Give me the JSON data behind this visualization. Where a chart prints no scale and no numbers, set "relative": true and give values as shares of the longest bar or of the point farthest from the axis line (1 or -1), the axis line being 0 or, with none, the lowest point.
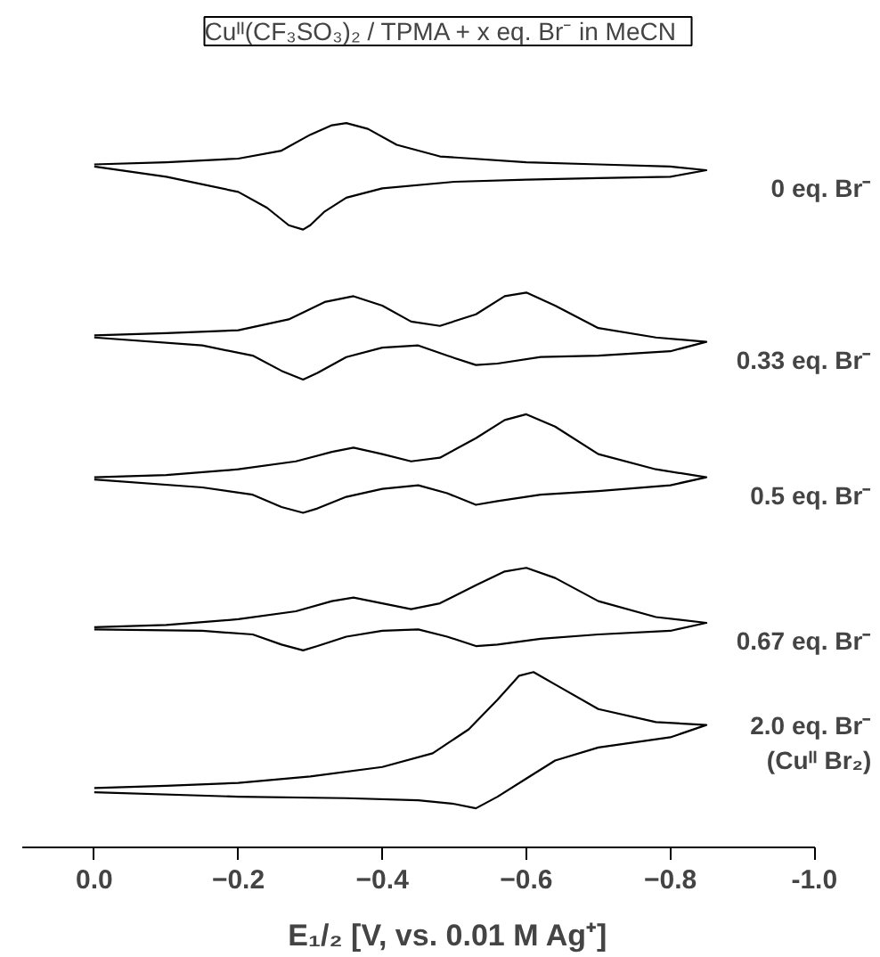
{
  "chart_data": {
    "type": "line",
    "relative": true,
    "title": "Cuᴵᴵ(CF₃SO₃)₂ / TPMA  + x eq. Br⁻  in MeCN",
    "xlabel": "E₁/₂ [V, vs. 0.01 M Ag⁺]",
    "xlim": [
      0.1,
      -1.0
    ],
    "xticks": [
      {
        "value": 0,
        "label": "0.0"
      },
      -0.2,
      -0.4,
      -0.6,
      -0.8,
      {
        "value": -1.0,
        "label": "-1.0"
      }
    ],
    "series": [
      {
        "name": "0 eq. Br⁻",
        "color": "#000000",
        "x": [
          0,
          -0.1,
          -0.2,
          -0.26,
          -0.3,
          -0.33,
          -0.35,
          -0.38,
          -0.42,
          -0.48,
          -0.6,
          -0.7,
          -0.8,
          -0.85,
          -0.8,
          -0.7,
          -0.6,
          -0.5,
          -0.4,
          -0.35,
          -0.32,
          -0.3,
          -0.29,
          -0.27,
          -0.24,
          -0.2,
          -0.1,
          0
        ],
        "values": [
          0.943,
          0.946,
          0.951,
          0.962,
          0.984,
          0.997,
          1.0,
          0.992,
          0.97,
          0.954,
          0.946,
          0.943,
          0.94,
          0.935,
          0.926,
          0.924,
          0.922,
          0.919,
          0.91,
          0.897,
          0.878,
          0.859,
          0.853,
          0.859,
          0.883,
          0.905,
          0.926,
          0.94
        ]
      },
      {
        "name": "0.33 eq. Br⁻",
        "color": "#000000",
        "x": [
          0,
          -0.1,
          -0.2,
          -0.27,
          -0.32,
          -0.36,
          -0.4,
          -0.44,
          -0.48,
          -0.53,
          -0.57,
          -0.6,
          -0.64,
          -0.7,
          -0.78,
          -0.85,
          -0.8,
          -0.7,
          -0.62,
          -0.56,
          -0.53,
          -0.49,
          -0.45,
          -0.4,
          -0.35,
          -0.31,
          -0.29,
          -0.26,
          -0.22,
          -0.15,
          0
        ],
        "values": [
          0.707,
          0.71,
          0.714,
          0.729,
          0.753,
          0.761,
          0.748,
          0.726,
          0.72,
          0.736,
          0.761,
          0.766,
          0.748,
          0.717,
          0.704,
          0.698,
          0.685,
          0.679,
          0.677,
          0.668,
          0.666,
          0.679,
          0.693,
          0.69,
          0.677,
          0.655,
          0.646,
          0.658,
          0.679,
          0.693,
          0.704
        ]
      },
      {
        "name": "0.5 eq. Br⁻",
        "color": "#000000",
        "x": [
          0,
          -0.1,
          -0.2,
          -0.28,
          -0.33,
          -0.36,
          -0.4,
          -0.44,
          -0.48,
          -0.53,
          -0.57,
          -0.6,
          -0.64,
          -0.7,
          -0.78,
          -0.85,
          -0.8,
          -0.7,
          -0.62,
          -0.56,
          -0.53,
          -0.49,
          -0.45,
          -0.4,
          -0.35,
          -0.31,
          -0.29,
          -0.26,
          -0.22,
          -0.15,
          0
        ],
        "values": [
          0.511,
          0.514,
          0.522,
          0.533,
          0.546,
          0.552,
          0.543,
          0.533,
          0.538,
          0.565,
          0.59,
          0.598,
          0.581,
          0.543,
          0.522,
          0.511,
          0.5,
          0.492,
          0.487,
          0.478,
          0.473,
          0.489,
          0.5,
          0.495,
          0.484,
          0.468,
          0.462,
          0.47,
          0.487,
          0.497,
          0.508
        ]
      },
      {
        "name": "0.67 eq. Br⁻",
        "color": "#000000",
        "x": [
          0,
          -0.1,
          -0.2,
          -0.28,
          -0.33,
          -0.36,
          -0.4,
          -0.44,
          -0.48,
          -0.53,
          -0.57,
          -0.6,
          -0.64,
          -0.7,
          -0.78,
          -0.85,
          -0.8,
          -0.7,
          -0.62,
          -0.56,
          -0.53,
          -0.49,
          -0.45,
          -0.4,
          -0.35,
          -0.31,
          -0.29,
          -0.26,
          -0.22,
          -0.15,
          0
        ],
        "values": [
          0.304,
          0.307,
          0.315,
          0.326,
          0.34,
          0.345,
          0.337,
          0.329,
          0.337,
          0.362,
          0.381,
          0.386,
          0.372,
          0.34,
          0.318,
          0.31,
          0.299,
          0.294,
          0.288,
          0.28,
          0.278,
          0.291,
          0.301,
          0.299,
          0.291,
          0.278,
          0.272,
          0.28,
          0.294,
          0.299,
          0.301
        ]
      },
      {
        "name": "2.0 eq. Br⁻\n(Cuᴵᴵ Br₂)",
        "color": "#000000",
        "x": [
          0,
          -0.1,
          -0.2,
          -0.3,
          -0.4,
          -0.47,
          -0.52,
          -0.56,
          -0.59,
          -0.61,
          -0.64,
          -0.7,
          -0.78,
          -0.85,
          -0.8,
          -0.7,
          -0.64,
          -0.6,
          -0.56,
          -0.53,
          -0.5,
          -0.45,
          -0.35,
          -0.2,
          0
        ],
        "values": [
          0.082,
          0.085,
          0.089,
          0.098,
          0.111,
          0.13,
          0.163,
          0.204,
          0.237,
          0.242,
          0.225,
          0.191,
          0.173,
          0.169,
          0.152,
          0.138,
          0.12,
          0.095,
          0.07,
          0.054,
          0.06,
          0.065,
          0.068,
          0.07,
          0.076
        ]
      }
    ]
  }
}
